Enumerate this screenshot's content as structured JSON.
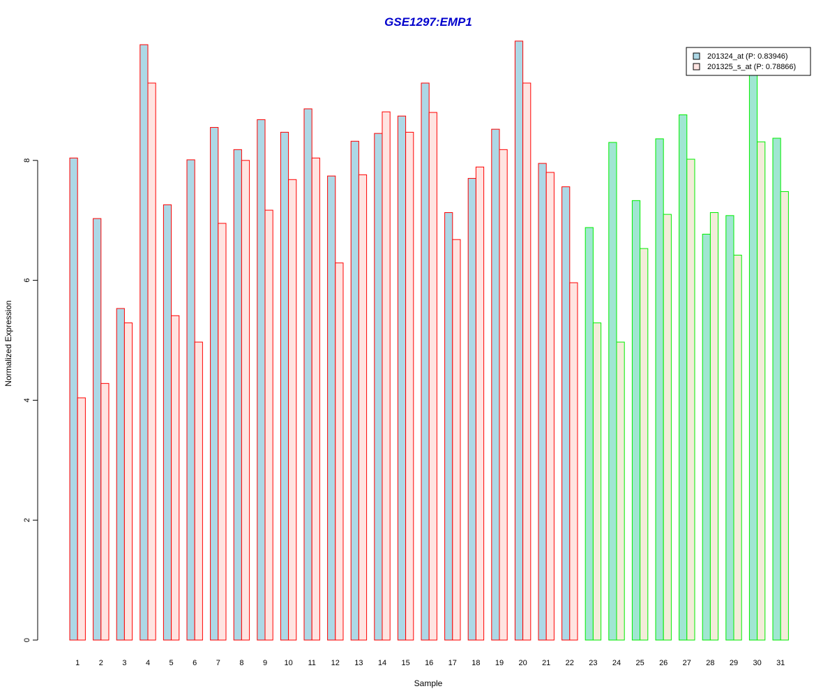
{
  "chart_data": {
    "type": "bar",
    "title": "GSE1297:EMP1",
    "xlabel": "Sample",
    "ylabel": "Normalized Expression",
    "ylim": [
      0,
      10.2
    ],
    "yticks": [
      0,
      2,
      4,
      6,
      8
    ],
    "grid": false,
    "legend_position": "top-right",
    "categories": [
      "1",
      "2",
      "3",
      "4",
      "5",
      "6",
      "7",
      "8",
      "9",
      "10",
      "11",
      "12",
      "13",
      "14",
      "15",
      "16",
      "17",
      "18",
      "19",
      "20",
      "21",
      "22",
      "23",
      "24",
      "25",
      "26",
      "27",
      "28",
      "29",
      "30",
      "31"
    ],
    "series": [
      {
        "name": "201324_at (P: 0.83946)",
        "values": [
          8.04,
          7.03,
          5.53,
          9.93,
          7.26,
          8.01,
          8.55,
          8.18,
          8.68,
          8.47,
          8.86,
          7.74,
          8.32,
          8.45,
          8.74,
          9.29,
          7.13,
          7.7,
          8.52,
          9.99,
          7.95,
          7.56,
          6.88,
          8.3,
          7.33,
          8.36,
          8.76,
          6.77,
          7.08,
          9.46,
          8.37
        ]
      },
      {
        "name": "201325_s_at (P: 0.78866)",
        "values": [
          4.04,
          4.28,
          5.29,
          9.29,
          5.41,
          4.97,
          6.95,
          8.0,
          7.17,
          7.68,
          8.04,
          6.29,
          7.76,
          8.81,
          8.47,
          8.8,
          6.68,
          7.89,
          8.18,
          9.29,
          7.8,
          5.96,
          5.29,
          4.97,
          6.53,
          7.1,
          8.02,
          7.13,
          6.42,
          8.31,
          7.48
        ]
      }
    ],
    "group_split_after": 22,
    "colors": {
      "title": "#0000cc",
      "group1_fill_a": "#add8e6",
      "group1_fill_b": "#ffe4e1",
      "group1_border": "#ff0000",
      "group2_fill_a": "#a0e6d2",
      "group2_fill_b": "#f3ecd9",
      "group2_border": "#00ee00",
      "legend_fill_a": "#add8e6",
      "legend_fill_b": "#ffe4e1"
    }
  }
}
